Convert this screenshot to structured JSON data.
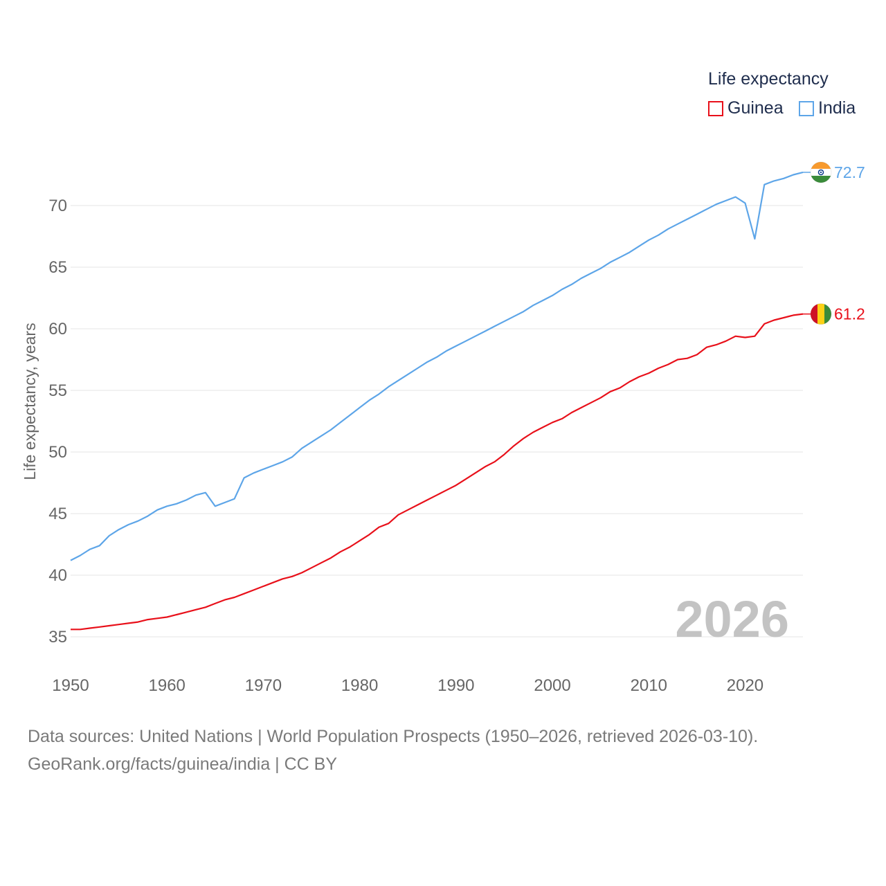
{
  "legend": {
    "title": "Life expectancy"
  },
  "footer": {
    "sources": "Data sources: United Nations | World Population Prospects (1950–2026, retrieved 2026-03-10).",
    "credit": "GeoRank.org/facts/guinea/india | CC BY"
  },
  "colors": {
    "guinea": "#e8101a",
    "india": "#5da5e8",
    "year": "#c3c3c3"
  },
  "chart_data": {
    "type": "line",
    "title": "",
    "ylabel": "Life expectancy, years",
    "xlabel": "",
    "year_watermark": "2026",
    "xlim": [
      1950,
      2026
    ],
    "ylim": [
      33,
      73
    ],
    "xticks": [
      1950,
      1960,
      1970,
      1980,
      1990,
      2000,
      2010,
      2020
    ],
    "yticks": [
      35,
      40,
      45,
      50,
      55,
      60,
      65,
      70
    ],
    "series": [
      {
        "name": "Guinea",
        "color": "#e8101a",
        "end_label": "61.2",
        "x": [
          1950,
          1951,
          1952,
          1953,
          1954,
          1955,
          1956,
          1957,
          1958,
          1959,
          1960,
          1961,
          1962,
          1963,
          1964,
          1965,
          1966,
          1967,
          1968,
          1969,
          1970,
          1971,
          1972,
          1973,
          1974,
          1975,
          1976,
          1977,
          1978,
          1979,
          1980,
          1981,
          1982,
          1983,
          1984,
          1985,
          1986,
          1987,
          1988,
          1989,
          1990,
          1991,
          1992,
          1993,
          1994,
          1995,
          1996,
          1997,
          1998,
          1999,
          2000,
          2001,
          2002,
          2003,
          2004,
          2005,
          2006,
          2007,
          2008,
          2009,
          2010,
          2011,
          2012,
          2013,
          2014,
          2015,
          2016,
          2017,
          2018,
          2019,
          2020,
          2021,
          2022,
          2023,
          2024,
          2025,
          2026
        ],
        "values": [
          35.6,
          35.6,
          35.7,
          35.8,
          35.9,
          36.0,
          36.1,
          36.2,
          36.4,
          36.5,
          36.6,
          36.8,
          37.0,
          37.2,
          37.4,
          37.7,
          38.0,
          38.2,
          38.5,
          38.8,
          39.1,
          39.4,
          39.7,
          39.9,
          40.2,
          40.6,
          41.0,
          41.4,
          41.9,
          42.3,
          42.8,
          43.3,
          43.9,
          44.2,
          44.9,
          45.3,
          45.7,
          46.1,
          46.5,
          46.9,
          47.3,
          47.8,
          48.3,
          48.8,
          49.2,
          49.8,
          50.5,
          51.1,
          51.6,
          52.0,
          52.4,
          52.7,
          53.2,
          53.6,
          54.0,
          54.4,
          54.9,
          55.2,
          55.7,
          56.1,
          56.4,
          56.8,
          57.1,
          57.5,
          57.6,
          57.9,
          58.5,
          58.7,
          59.0,
          59.4,
          59.3,
          59.4,
          60.4,
          60.7,
          60.9,
          61.1,
          61.2
        ]
      },
      {
        "name": "India",
        "color": "#5da5e8",
        "end_label": "72.7",
        "x": [
          1950,
          1951,
          1952,
          1953,
          1954,
          1955,
          1956,
          1957,
          1958,
          1959,
          1960,
          1961,
          1962,
          1963,
          1964,
          1965,
          1966,
          1967,
          1968,
          1969,
          1970,
          1971,
          1972,
          1973,
          1974,
          1975,
          1976,
          1977,
          1978,
          1979,
          1980,
          1981,
          1982,
          1983,
          1984,
          1985,
          1986,
          1987,
          1988,
          1989,
          1990,
          1991,
          1992,
          1993,
          1994,
          1995,
          1996,
          1997,
          1998,
          1999,
          2000,
          2001,
          2002,
          2003,
          2004,
          2005,
          2006,
          2007,
          2008,
          2009,
          2010,
          2011,
          2012,
          2013,
          2014,
          2015,
          2016,
          2017,
          2018,
          2019,
          2020,
          2021,
          2022,
          2023,
          2024,
          2025,
          2026
        ],
        "values": [
          41.2,
          41.6,
          42.1,
          42.4,
          43.2,
          43.7,
          44.1,
          44.4,
          44.8,
          45.3,
          45.6,
          45.8,
          46.1,
          46.5,
          46.7,
          45.6,
          45.9,
          46.2,
          47.9,
          48.3,
          48.6,
          48.9,
          49.2,
          49.6,
          50.3,
          50.8,
          51.3,
          51.8,
          52.4,
          53.0,
          53.6,
          54.2,
          54.7,
          55.3,
          55.8,
          56.3,
          56.8,
          57.3,
          57.7,
          58.2,
          58.6,
          59.0,
          59.4,
          59.8,
          60.2,
          60.6,
          61.0,
          61.4,
          61.9,
          62.3,
          62.7,
          63.2,
          63.6,
          64.1,
          64.5,
          64.9,
          65.4,
          65.8,
          66.2,
          66.7,
          67.2,
          67.6,
          68.1,
          68.5,
          68.9,
          69.3,
          69.7,
          70.1,
          70.4,
          70.7,
          70.2,
          67.3,
          71.7,
          72.0,
          72.2,
          72.5,
          72.7
        ]
      }
    ]
  }
}
